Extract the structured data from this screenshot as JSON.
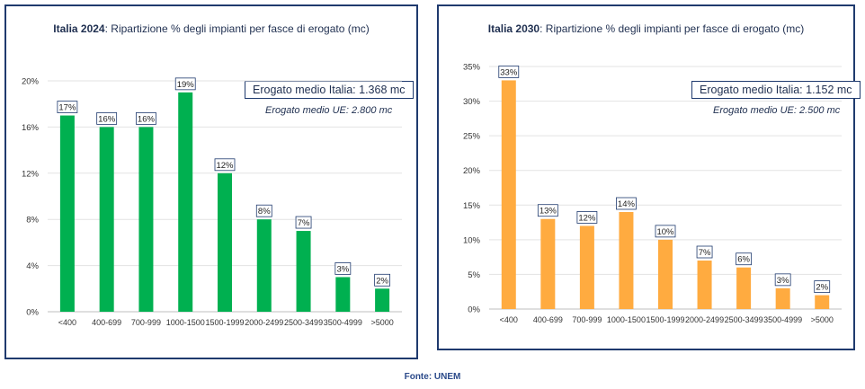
{
  "charts": [
    {
      "title_bold": "Italia 2024",
      "title_rest": ": Ripartizione % degli impianti per fasce di erogato (mc)",
      "avg_label": "Erogato medio Italia:  1.368 mc",
      "ue_label": "Erogato medio UE: 2.800 mc",
      "bar_color": "#00b050"
    },
    {
      "title_bold": "Italia 2030",
      "title_rest": ": Ripartizione % degli impianti per fasce di erogato (mc)",
      "avg_label": "Erogato medio Italia:  1.152 mc",
      "ue_label": "Erogato medio UE: 2.500 mc",
      "bar_color": "#ffab40"
    }
  ],
  "source": "Fonte: UNEM",
  "chart_data": [
    {
      "type": "bar",
      "title": "Italia 2024: Ripartizione % degli impianti per fasce di erogato (mc)",
      "categories": [
        "<400",
        "400-699",
        "700-999",
        "1000-1500",
        "1500-1999",
        "2000-2499",
        "2500-3499",
        "3500-4999",
        ">5000"
      ],
      "values": [
        17,
        16,
        16,
        19,
        12,
        8,
        7,
        3,
        2
      ],
      "data_labels": [
        "17%",
        "16%",
        "16%",
        "19%",
        "12%",
        "8%",
        "7%",
        "3%",
        "2%"
      ],
      "yticks": [
        "0%",
        "4%",
        "8%",
        "12%",
        "16%",
        "20%"
      ],
      "ylim": [
        0,
        20
      ],
      "grid": true
    },
    {
      "type": "bar",
      "title": "Italia 2030: Ripartizione % degli impianti per fasce di erogato (mc)",
      "categories": [
        "<400",
        "400-699",
        "700-999",
        "1000-1500",
        "1500-1999",
        "2000-2499",
        "2500-3499",
        "3500-4999",
        ">5000"
      ],
      "values": [
        33,
        13,
        12,
        14,
        10,
        7,
        6,
        3,
        2
      ],
      "data_labels": [
        "33%",
        "13%",
        "12%",
        "14%",
        "10%",
        "7%",
        "6%",
        "3%",
        "2%"
      ],
      "yticks": [
        "0%",
        "5%",
        "10%",
        "15%",
        "20%",
        "25%",
        "30%",
        "35%"
      ],
      "ylim": [
        0,
        35
      ],
      "grid": true
    }
  ]
}
